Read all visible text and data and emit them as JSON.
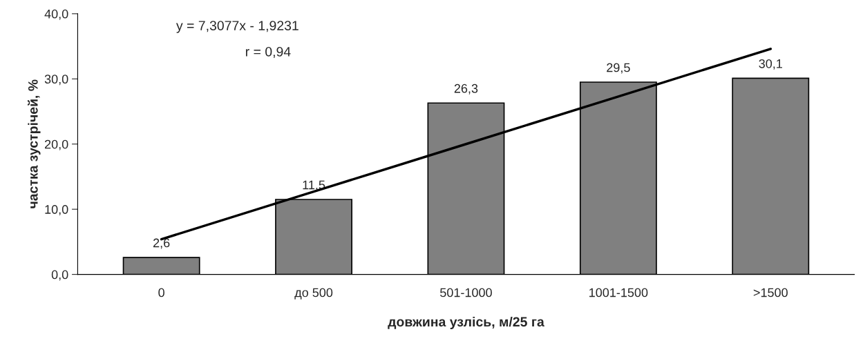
{
  "chart_data": {
    "type": "bar",
    "xlabel": "довжина узлісь, м/25 га",
    "ylabel": "частка зустрічей, %",
    "categories": [
      "0",
      "до 500",
      "501-1000",
      "1001-1500",
      ">1500"
    ],
    "series": [
      {
        "color": "#808080",
        "values": [
          2.6,
          11.5,
          26.3,
          29.5,
          30.1
        ],
        "value_labels": [
          "2,6",
          "11,5",
          "26,3",
          "29,5",
          "30,1"
        ]
      },
      {
        "type": "line",
        "color": "#000000",
        "values": [
          5.4,
          12.7,
          20.0,
          27.3,
          34.6
        ]
      }
    ],
    "annotations": [
      "y = 7,3077x - 1,9231",
      "r = 0,94"
    ],
    "ylim": [
      0,
      40
    ],
    "yticks": [
      {
        "value": 0,
        "label": "0,0"
      },
      {
        "value": 10,
        "label": "10,0"
      },
      {
        "value": 20,
        "label": "20,0"
      },
      {
        "value": 30,
        "label": "30,0"
      },
      {
        "value": 40,
        "label": "40,0"
      }
    ],
    "grid": false,
    "legend": false
  }
}
